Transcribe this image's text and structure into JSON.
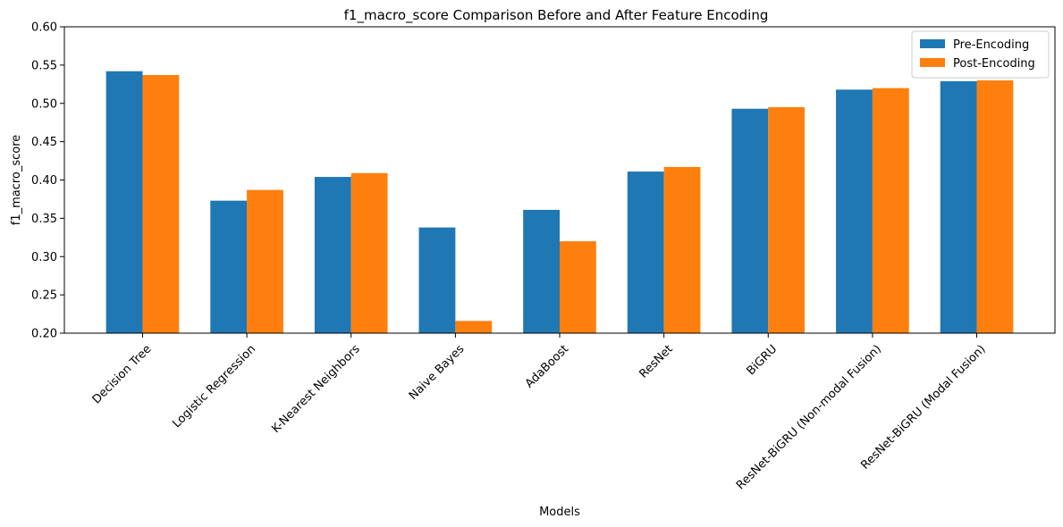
{
  "chart_data": {
    "type": "bar",
    "title": "f1_macro_score Comparison Before and After Feature Encoding",
    "xlabel": "Models",
    "ylabel": "f1_macro_score",
    "ylim": [
      0.2,
      0.6
    ],
    "yticks": [
      0.2,
      0.25,
      0.3,
      0.35,
      0.4,
      0.45,
      0.5,
      0.55,
      0.6
    ],
    "ytick_labels": [
      "0.20",
      "0.25",
      "0.30",
      "0.35",
      "0.40",
      "0.45",
      "0.50",
      "0.55",
      "0.60"
    ],
    "grid": false,
    "legend_position": "top-right",
    "categories": [
      "Decision Tree",
      "Logistic Regression",
      "K-Nearest Neighbors",
      "Naive Bayes",
      "AdaBoost",
      "ResNet",
      "BiGRU",
      "ResNet-BiGRU (Non-modal Fusion)",
      "ResNet-BiGRU (Modal Fusion)"
    ],
    "series": [
      {
        "name": "Pre-Encoding",
        "color": "#1f77b4",
        "values": [
          0.542,
          0.373,
          0.404,
          0.338,
          0.361,
          0.411,
          0.493,
          0.518,
          0.529
        ]
      },
      {
        "name": "Post-Encoding",
        "color": "#ff7f0e",
        "values": [
          0.537,
          0.387,
          0.409,
          0.216,
          0.32,
          0.417,
          0.495,
          0.52,
          0.53
        ]
      }
    ]
  }
}
